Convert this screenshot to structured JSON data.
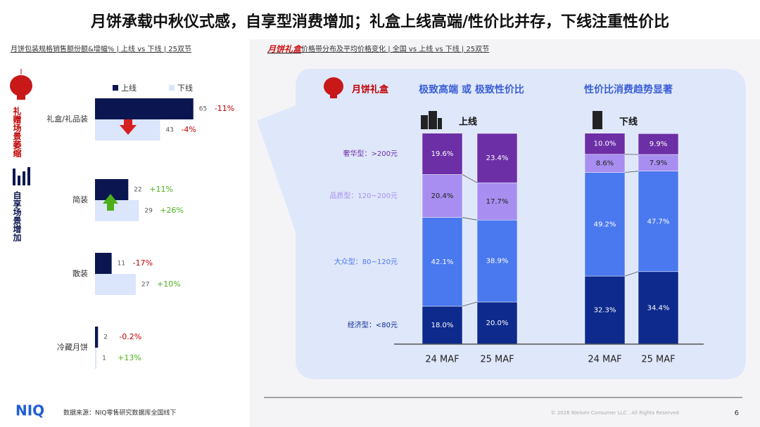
{
  "title": "月饼承载中秋仪式感，自享型消费增加；礼盒上线高端/性价比并存，下线注重性价比",
  "chart_data": [
    {
      "type": "hbar",
      "title": "月饼包装规格销售额份额&增幅% | 上线 vs 下线 | 25双节",
      "side_labels": [
        "礼赠场景萎缩",
        "自享场景增加"
      ],
      "categories": [
        "礼盒/礼品装",
        "简装",
        "散装",
        "冷藏月饼"
      ],
      "series": [
        {
          "name": "上线",
          "color": "#0b1650",
          "values": [
            65,
            22,
            11,
            2
          ],
          "changes": [
            "-11%",
            "+11%",
            "-17%",
            "-0.2%"
          ]
        },
        {
          "name": "下线",
          "color": "#dbe5fb",
          "values": [
            43,
            29,
            27,
            1
          ],
          "changes": [
            "-4%",
            "+26%",
            "+10%",
            "+13%"
          ]
        }
      ]
    },
    {
      "type": "stacked_bar",
      "title_highlight": "月饼礼盒",
      "title": "价格带分布及平均价格变化 | 全国 vs 上线 vs 下线 | 25双节",
      "header": {
        "label": "月饼礼盒",
        "left": "极致高端 或 极致性价比",
        "right": "性价比消费趋势显著"
      },
      "groups": [
        "上线",
        "下线"
      ],
      "categories": [
        "24 MAF",
        "25 MAF",
        "24 MAF",
        "25 MAF"
      ],
      "series": [
        {
          "name": "经济型：<80元",
          "color": "#0d2a8c",
          "values": [
            18.0,
            20.0,
            32.3,
            34.4
          ],
          "value_labels": [
            "18.0%",
            "20.0%",
            "32.3%",
            "34.4%"
          ]
        },
        {
          "name": "大众型：80~120元",
          "color": "#4a78ee",
          "values": [
            42.1,
            38.9,
            49.2,
            47.7
          ],
          "value_labels": [
            "42.1%",
            "38.9%",
            "49.2%",
            "47.7%"
          ]
        },
        {
          "name": "品质型：120~200元",
          "color": "#a78ef0",
          "values": [
            20.4,
            17.7,
            8.6,
            7.9
          ],
          "value_labels": [
            "20.4%",
            "17.7%",
            "8.6%",
            "7.9%"
          ]
        },
        {
          "name": "奢华型：>200元",
          "color": "#6c2fa6",
          "values": [
            19.6,
            23.4,
            10.0,
            9.9
          ],
          "value_labels": [
            "19.6%",
            "23.4%",
            "10.0%",
            "9.9%"
          ]
        }
      ]
    }
  ],
  "footer": {
    "logo": "NIQ",
    "source": "数据来源：NIQ零售研究数据库全国线下",
    "copyright": "© 2026 Nielsen Consumer LLC . All Rights Reserved",
    "page": "6"
  }
}
